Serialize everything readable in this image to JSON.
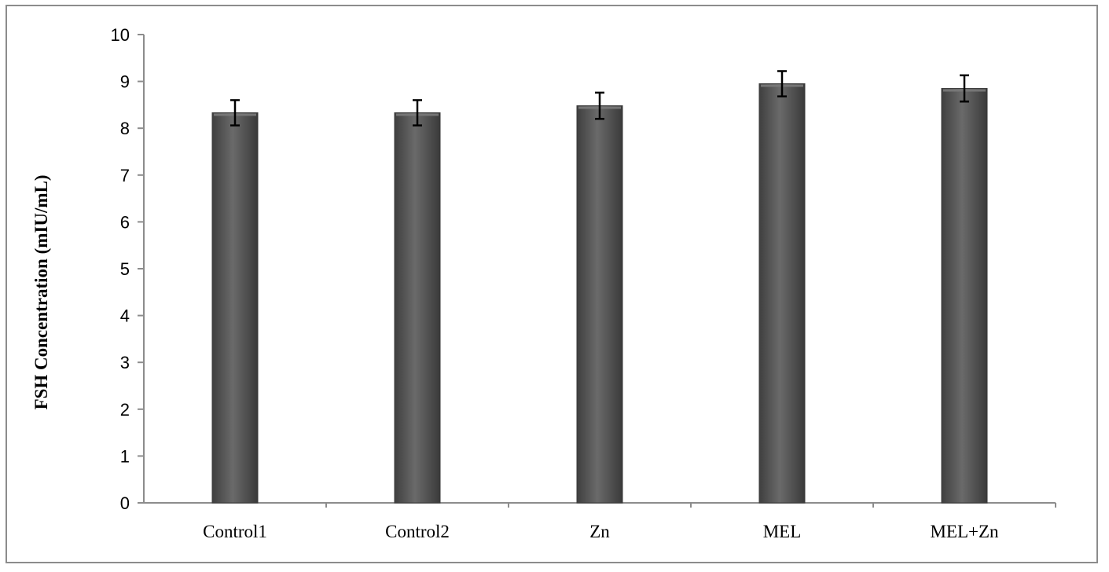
{
  "chart_data": {
    "type": "bar",
    "title": "",
    "xlabel": "",
    "ylabel": "FSH Concentration (mIU/mL)",
    "categories": [
      "Control1",
      "Control2",
      "Zn",
      "MEL",
      "MEL+Zn"
    ],
    "values": [
      8.33,
      8.33,
      8.48,
      8.95,
      8.85
    ],
    "errors": [
      0.27,
      0.27,
      0.28,
      0.27,
      0.28
    ],
    "ylim": [
      0,
      10
    ],
    "yticks": [
      "0",
      "1",
      "2",
      "3",
      "4",
      "5",
      "6",
      "7",
      "8",
      "9",
      "10"
    ],
    "grid": false,
    "legend": "none",
    "colors": {
      "bar": "#5a5a5a",
      "bar_highlight": "#7a7a7a",
      "axis": "#8c8c8c",
      "error_bar": "#000000"
    }
  }
}
